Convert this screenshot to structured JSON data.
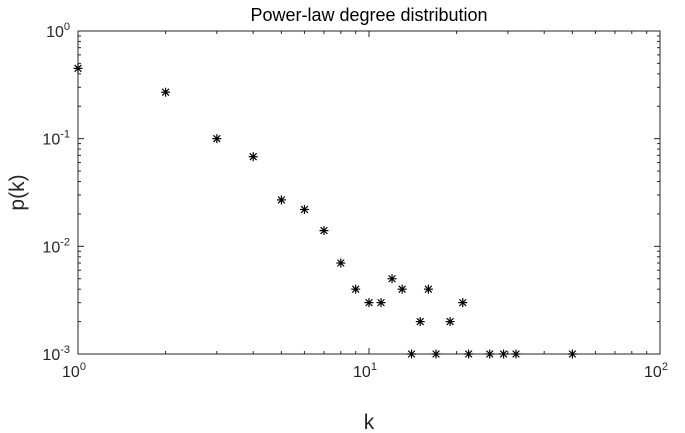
{
  "chart_data": {
    "type": "scatter",
    "title": "Power-law degree distribution",
    "xlabel": "k",
    "ylabel": "p(k)",
    "xscale": "log",
    "yscale": "log",
    "xlim": [
      1,
      100
    ],
    "ylim": [
      0.001,
      1
    ],
    "grid": false,
    "legend": "none",
    "marker": "asterisk",
    "marker_color": "#000000",
    "x_ticks": [
      {
        "value": 1,
        "base": "10",
        "exp": "0"
      },
      {
        "value": 10,
        "base": "10",
        "exp": "1"
      },
      {
        "value": 100,
        "base": "10",
        "exp": "2"
      }
    ],
    "y_ticks": [
      {
        "value": 1,
        "base": "10",
        "exp": "0"
      },
      {
        "value": 0.1,
        "base": "10",
        "exp": "-1"
      },
      {
        "value": 0.01,
        "base": "10",
        "exp": "-2"
      },
      {
        "value": 0.001,
        "base": "10",
        "exp": "-3"
      }
    ],
    "points": [
      {
        "x": 1,
        "y": 0.45
      },
      {
        "x": 2,
        "y": 0.27
      },
      {
        "x": 3,
        "y": 0.1
      },
      {
        "x": 4,
        "y": 0.068
      },
      {
        "x": 5,
        "y": 0.027
      },
      {
        "x": 6,
        "y": 0.022
      },
      {
        "x": 7,
        "y": 0.014
      },
      {
        "x": 8,
        "y": 0.007
      },
      {
        "x": 9,
        "y": 0.004
      },
      {
        "x": 10,
        "y": 0.003
      },
      {
        "x": 11,
        "y": 0.003
      },
      {
        "x": 12,
        "y": 0.005
      },
      {
        "x": 13,
        "y": 0.004
      },
      {
        "x": 14,
        "y": 0.001
      },
      {
        "x": 15,
        "y": 0.002
      },
      {
        "x": 16,
        "y": 0.004
      },
      {
        "x": 17,
        "y": 0.001
      },
      {
        "x": 19,
        "y": 0.002
      },
      {
        "x": 21,
        "y": 0.003
      },
      {
        "x": 22,
        "y": 0.001
      },
      {
        "x": 26,
        "y": 0.001
      },
      {
        "x": 29,
        "y": 0.001
      },
      {
        "x": 32,
        "y": 0.001
      },
      {
        "x": 50,
        "y": 0.001
      }
    ]
  }
}
